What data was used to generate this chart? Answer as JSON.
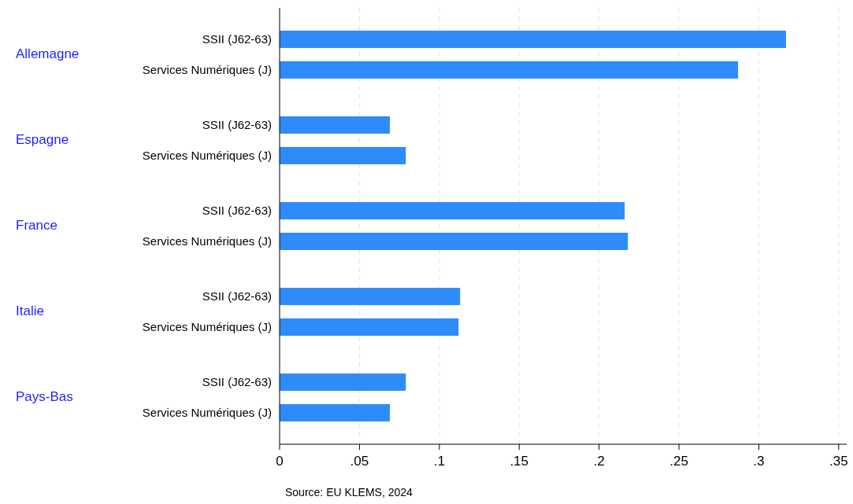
{
  "chart_data": {
    "type": "bar",
    "orientation": "horizontal",
    "categories": [
      "SSII (J62-63)",
      "Services Numériques (J)",
      "SSII (J62-63)",
      "Services Numériques (J)",
      "SSII (J62-63)",
      "Services Numériques (J)",
      "SSII (J62-63)",
      "Services Numériques (J)",
      "SSII (J62-63)",
      "Services Numériques (J)"
    ],
    "values": [
      0.317,
      0.287,
      0.069,
      0.079,
      0.216,
      0.218,
      0.113,
      0.112,
      0.079,
      0.069
    ],
    "color": "#2e8bfa",
    "xlim": [
      0,
      0.355
    ],
    "xticks": [
      0,
      {
        "value": 0.05,
        "label": ".05"
      },
      {
        "value": 0.1,
        "label": ".1"
      },
      {
        "value": 0.15,
        "label": ".15"
      },
      {
        "value": 0.2,
        "label": ".2"
      },
      {
        "value": 0.25,
        "label": ".25"
      },
      {
        "value": 0.3,
        "label": ".3"
      },
      {
        "value": 0.35,
        "label": ".35"
      }
    ],
    "grid": "x",
    "annotations": [
      "Allemagne",
      "Espagne",
      "France",
      "Italie",
      "Pays-Bas",
      "Source: EU KLEMS, 2024"
    ]
  }
}
